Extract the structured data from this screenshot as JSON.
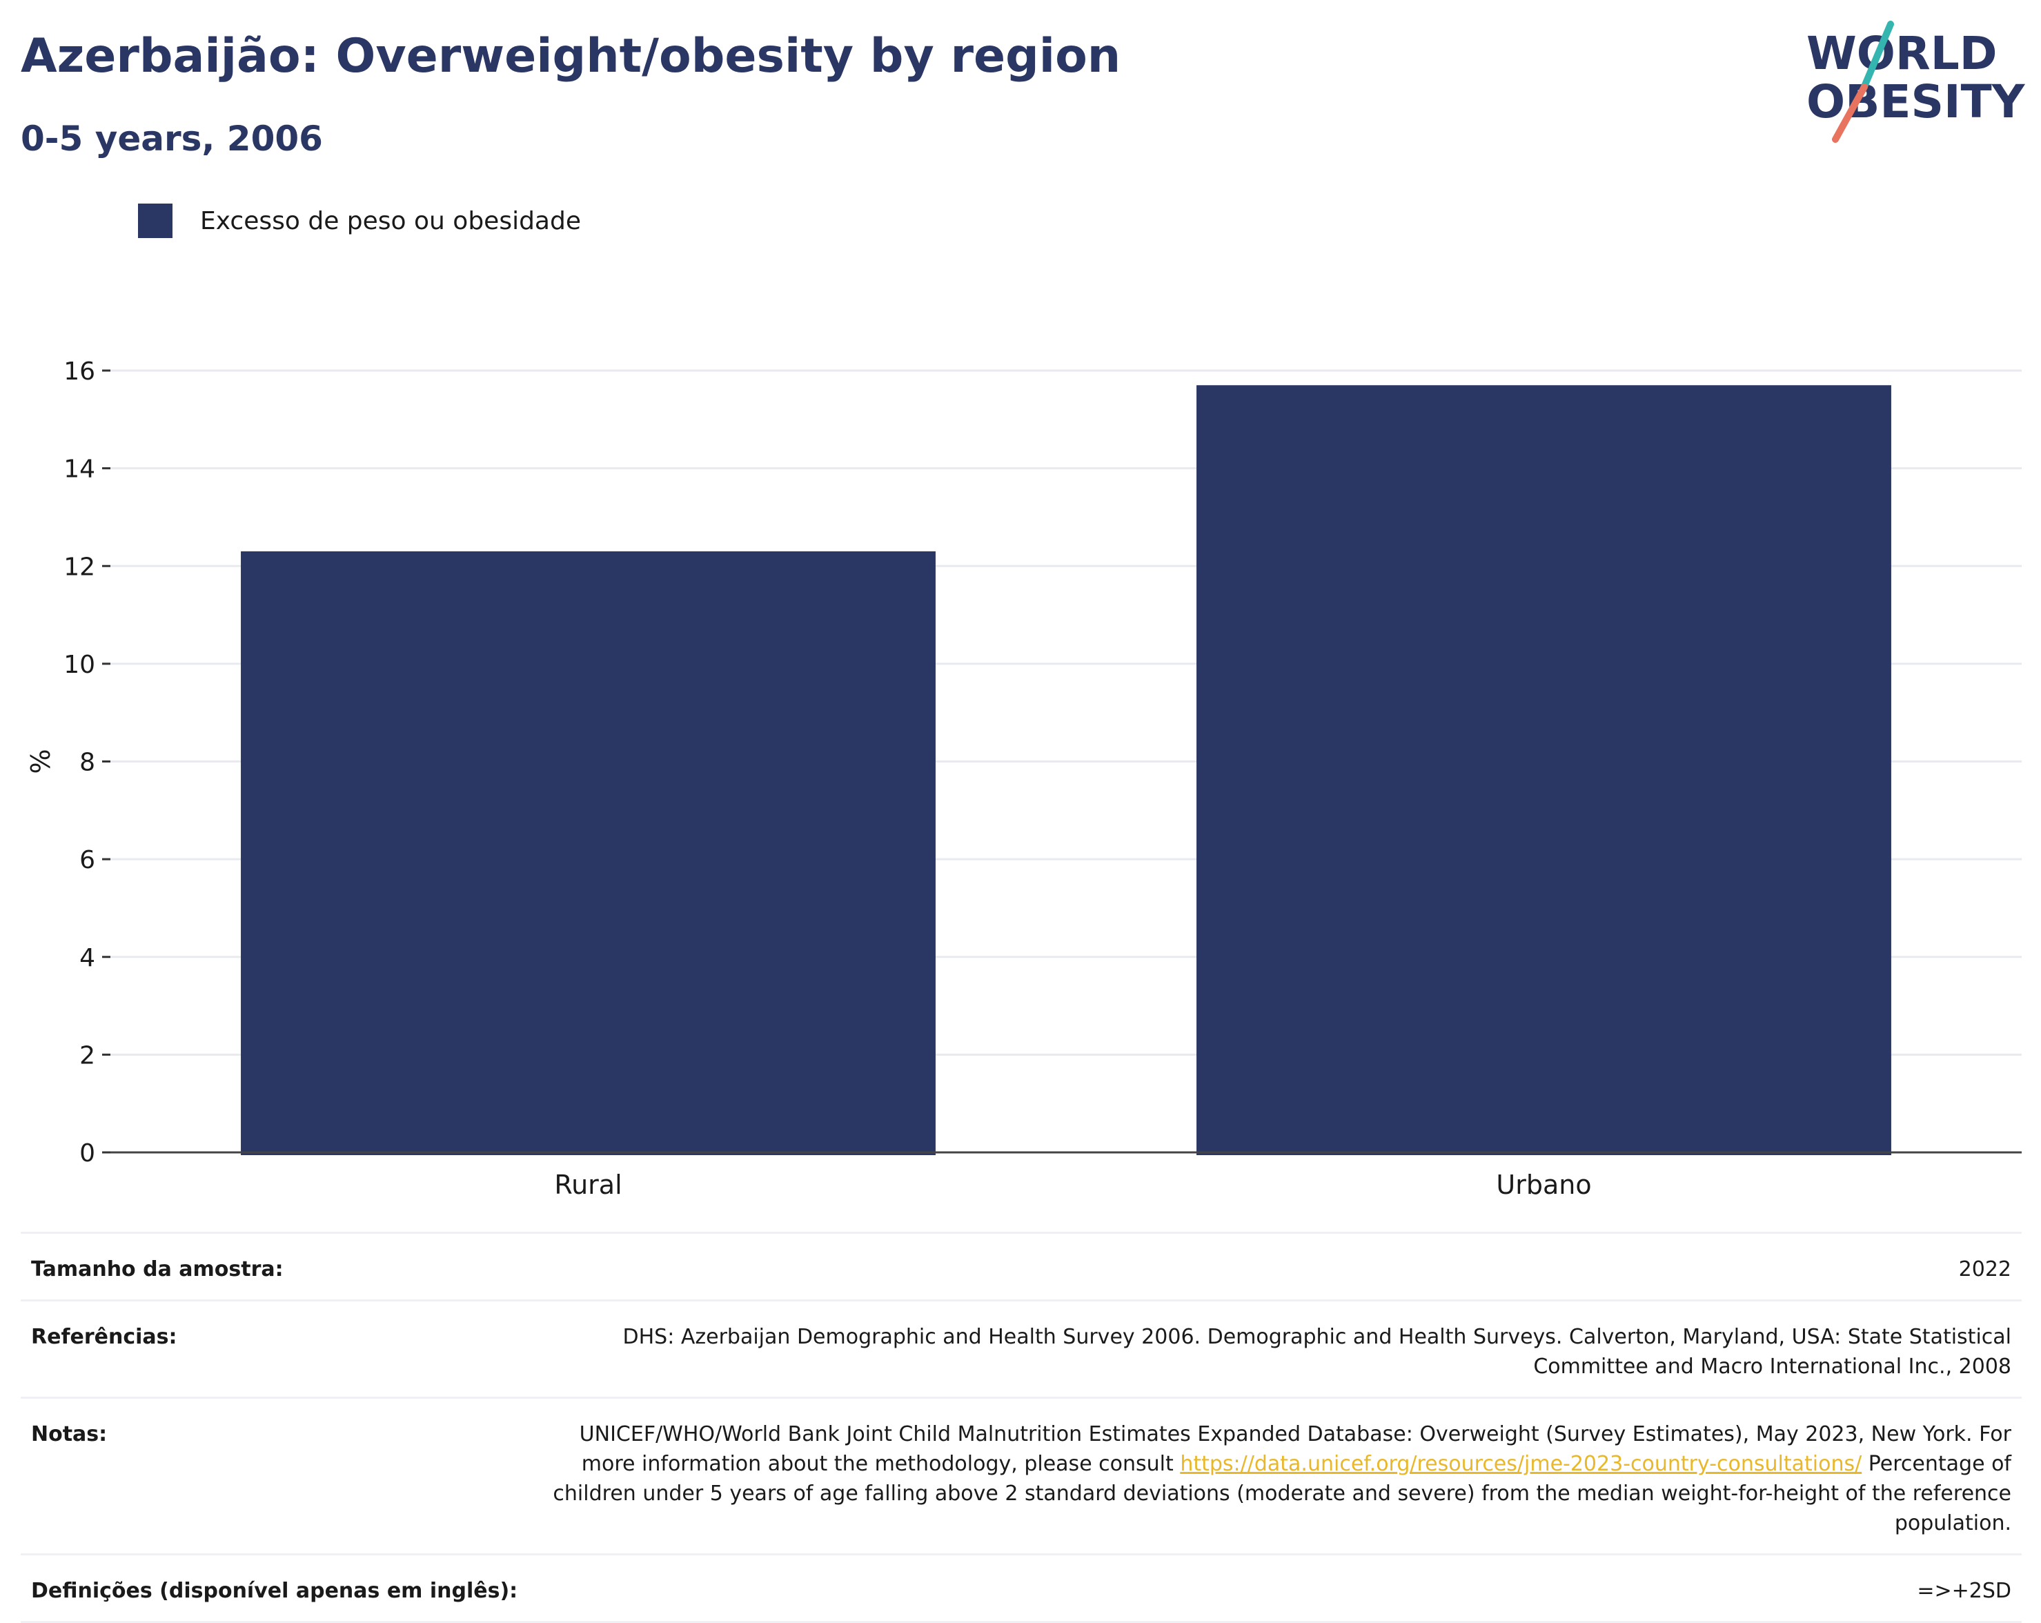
{
  "header": {
    "title": "Azerbaijão: Overweight/obesity by region",
    "subtitle": "0-5 years, 2006"
  },
  "logo": {
    "line1": "WORLD",
    "line2": "OBESITY",
    "colors": {
      "text": "#2a3663",
      "slash_teal": "#35b5b0",
      "slash_coral": "#e8735f"
    }
  },
  "chart_data": {
    "type": "bar",
    "categories": [
      "Rural",
      "Urbano"
    ],
    "series": [
      {
        "name": "Excesso de peso ou obesidade",
        "values": [
          12.3,
          15.7
        ],
        "color": "#2a3663"
      }
    ],
    "ylabel": "%",
    "xlabel": "",
    "ylim": [
      0,
      16
    ],
    "yticks": [
      0,
      2,
      4,
      6,
      8,
      10,
      12,
      14,
      16
    ],
    "grid": true,
    "legend": "top-left"
  },
  "info": {
    "sample_label": "Tamanho da amostra:",
    "sample_value": "2022",
    "refs_label": "Referências:",
    "refs_value": "DHS: Azerbaijan Demographic and Health Survey 2006. Demographic and Health Surveys. Calverton, Maryland, USA: State Statistical Committee and Macro International Inc., 2008",
    "notes_label": "Notas:",
    "notes_text_1": "UNICEF/WHO/World Bank Joint Child Malnutrition Estimates Expanded Database: Overweight (Survey Estimates), May 2023, New York. For more information about the methodology, please consult ",
    "notes_link": "https://data.unicef.org/resources/jme-2023-country-consultations/",
    "notes_text_2": " Percentage of children under 5 years of age falling above 2 standard deviations (moderate and severe) from the median weight-for-height of the reference population.",
    "defs_label": "Definições (disponível apenas em inglês):",
    "defs_value": "=>+2SD"
  }
}
